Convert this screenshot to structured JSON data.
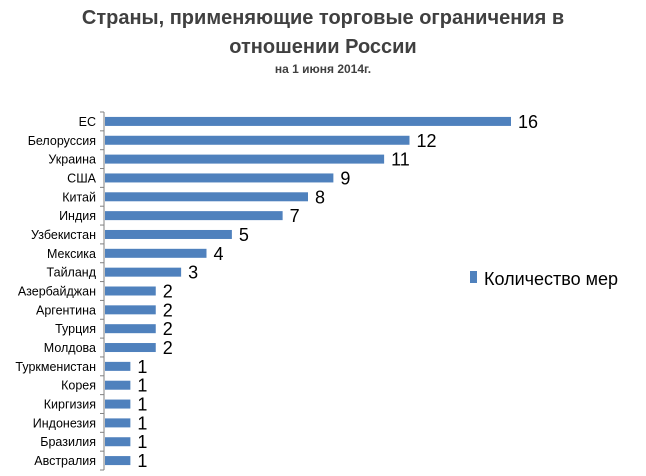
{
  "chart_data": {
    "type": "bar",
    "orientation": "horizontal",
    "title_lines": [
      "Страны, применяющие торговые ограничения в",
      "отношении России"
    ],
    "subtitle": "на 1 июня 2014г.",
    "categories": [
      "ЕС",
      "Белоруссия",
      "Украина",
      "США",
      "Китай",
      "Индия",
      "Узбекистан",
      "Мексика",
      "Тайланд",
      "Азербайджан",
      "Аргентина",
      "Турция",
      "Молдова",
      "Туркменистан",
      "Корея",
      "Киргизия",
      "Индонезия",
      "Бразилия",
      "Австралия"
    ],
    "series": [
      {
        "name": "Количество мер",
        "values": [
          16,
          12,
          11,
          9,
          8,
          7,
          5,
          4,
          3,
          2,
          2,
          2,
          2,
          1,
          1,
          1,
          1,
          1,
          1
        ]
      }
    ],
    "xlim": [
      0,
      16
    ],
    "data_labels": true,
    "grid": false,
    "legend_position": "right",
    "colors": {
      "bar": "#4f81bd",
      "axis": "#808080",
      "title": "#404040"
    }
  }
}
